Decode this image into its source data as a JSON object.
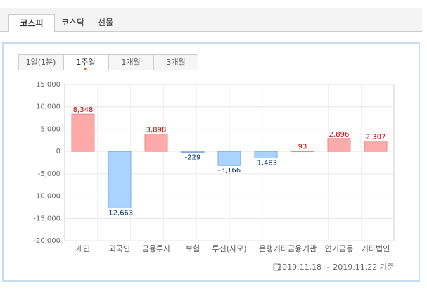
{
  "tabs": [
    "코스피",
    "코스닥",
    "선물"
  ],
  "subtabs": [
    "1일(1분)",
    "1주일",
    "1개월",
    "3개월"
  ],
  "chart_data": {
    "type": "bar",
    "categories": [
      "개인",
      "외국인",
      "금융투자",
      "보험",
      "투신(사모)",
      "은행",
      "기타금융",
      "기관",
      "연기금등",
      "기타법인"
    ],
    "values": [
      8348,
      -12663,
      3898,
      -229,
      -3166,
      -1483,
      null,
      93,
      2896,
      2307
    ],
    "value_labels": [
      "8,348",
      "-12,663",
      "3,898",
      "-229",
      "-3,166",
      "-1,483",
      null,
      "93",
      "2,896",
      "2,307"
    ],
    "positive_color": "#ffaaaa",
    "negative_color": "#aad4ff",
    "ylim": [
      -20000,
      15000
    ],
    "yticks": [
      {
        "value": -20000,
        "label": "-20,000"
      },
      {
        "value": -15000,
        "label": "-15,000"
      },
      {
        "value": -10000,
        "label": "-10,000"
      },
      {
        "value": -5000,
        "label": "-5,000"
      },
      0,
      {
        "value": 5000,
        "label": "5,000"
      },
      {
        "value": 10000,
        "label": "10,000"
      },
      {
        "value": 15000,
        "label": "15,000"
      }
    ],
    "grid": true
  },
  "footer": "2019.11.18 ~ 2019.11.22 기준"
}
